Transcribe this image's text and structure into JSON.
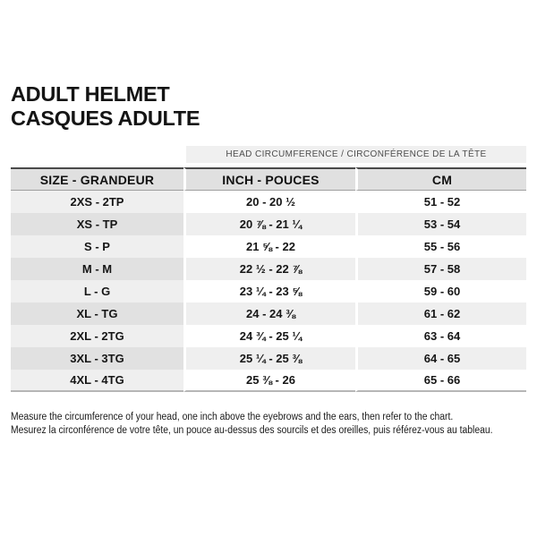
{
  "title": {
    "line1": "ADULT HELMET",
    "line2": "CASQUES ADULTE"
  },
  "table": {
    "span_header": "HEAD CIRCUMFERENCE / CIRCONFÉRENCE DE LA TÊTE",
    "columns": [
      "SIZE - GRANDEUR",
      "INCH - POUCES",
      "CM"
    ],
    "rows": [
      {
        "size": "2XS - 2TP",
        "inch": "20 - 20 ½",
        "cm": "51 - 52"
      },
      {
        "size": "XS - TP",
        "inch": "20 ⅞ - 21 ¼",
        "cm": "53 - 54"
      },
      {
        "size": "S - P",
        "inch": "21 ⅝ - 22",
        "cm": "55 - 56"
      },
      {
        "size": "M - M",
        "inch": "22 ½ - 22 ⅞",
        "cm": "57 - 58"
      },
      {
        "size": "L - G",
        "inch": "23 ¼ - 23 ⅝",
        "cm": "59 - 60"
      },
      {
        "size": "XL - TG",
        "inch": "24 - 24 ⅜",
        "cm": "61 - 62"
      },
      {
        "size": "2XL - 2TG",
        "inch": "24 ¾ - 25 ¼",
        "cm": "63 - 64"
      },
      {
        "size": "3XL - 3TG",
        "inch": "25 ¼ - 25 ⅜",
        "cm": "64 - 65"
      },
      {
        "size": "4XL - 4TG",
        "inch": "25 ⅜ - 26",
        "cm": "65 - 66"
      }
    ]
  },
  "footer": {
    "line1_en": "Measure the circumference of your head, one inch above the eyebrows and the ears, then refer to the chart.",
    "line2_fr": "Mesurez la circonférence de votre tête, un pouce au-dessus des sourcils et des oreilles, puis référez-vous au tableau."
  },
  "colors": {
    "header_cell": "#e0e0e0",
    "span_band": "#f0f0f0",
    "row_light": "#efefef",
    "row_dark": "#e1e1e1",
    "rule_dark": "#4a4a4a",
    "rule_bottom": "#b6b6b6",
    "text": "#161616"
  }
}
